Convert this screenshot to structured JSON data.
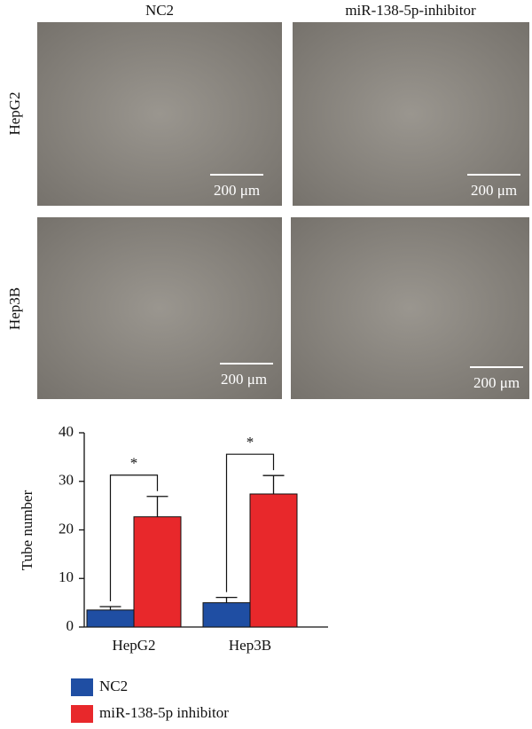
{
  "micrographs": {
    "columns": [
      "NC2",
      "miR-138-5p-inhibitor"
    ],
    "rows": [
      "HepG2",
      "Hep3B"
    ],
    "scale_bar": "200 μm"
  },
  "chart_data": {
    "type": "bar",
    "ylabel": "Tube number",
    "categories": [
      "HepG2",
      "Hep3B"
    ],
    "series": [
      {
        "name": "NC2",
        "color": "#1f4ea3",
        "values": [
          3.5,
          5
        ],
        "errors": [
          0.7,
          1.1
        ]
      },
      {
        "name": "miR-138-5p inhibitor",
        "color": "#e8282b",
        "values": [
          22.7,
          27.4
        ],
        "errors": [
          4.2,
          3.8
        ]
      }
    ],
    "annotations": [
      "*",
      "*"
    ],
    "ylim": [
      0,
      40
    ],
    "yticks": [
      0,
      10,
      20,
      30,
      40
    ]
  }
}
